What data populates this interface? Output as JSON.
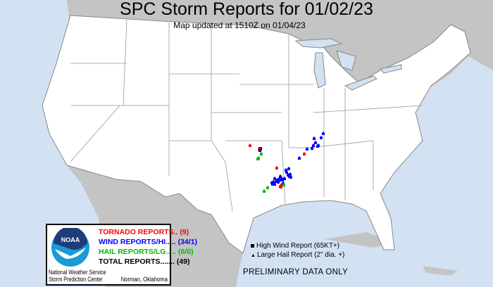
{
  "header": {
    "title": "SPC Storm Reports for 01/02/23",
    "subtitle": "Map updated at 1510Z on 01/04/23"
  },
  "legend": {
    "tornado": "TORNADO REPORTS.. (9)",
    "wind": "WIND REPORTS/HI..... (34/1)",
    "hail": "HAIL REPORTS/LG..... (6/0)",
    "total": "TOTAL REPORTS....... (49)",
    "logo_text": "NOAA",
    "org1": "National Weather Service",
    "org2": "Storm Prediction Center",
    "location": "Norman, Oklahoma"
  },
  "key": {
    "high_wind": "High Wind Report (65KT+)",
    "large_hail": "Large Hail Report (2\" dia. +)",
    "high_wind_icon": "square-icon",
    "large_hail_icon": "triangle-icon"
  },
  "notice": "PRELIMINARY DATA ONLY",
  "reports": {
    "tornado": 9,
    "wind": 34,
    "wind_significant": 1,
    "hail": 6,
    "hail_significant": 0,
    "total": 49
  },
  "colors": {
    "tornado": "#ff0000",
    "wind": "#0000ff",
    "hail": "#00bb00",
    "water": "#d2e2f2",
    "land": "#ffffff",
    "foreign_land": "#c4c4c4"
  }
}
